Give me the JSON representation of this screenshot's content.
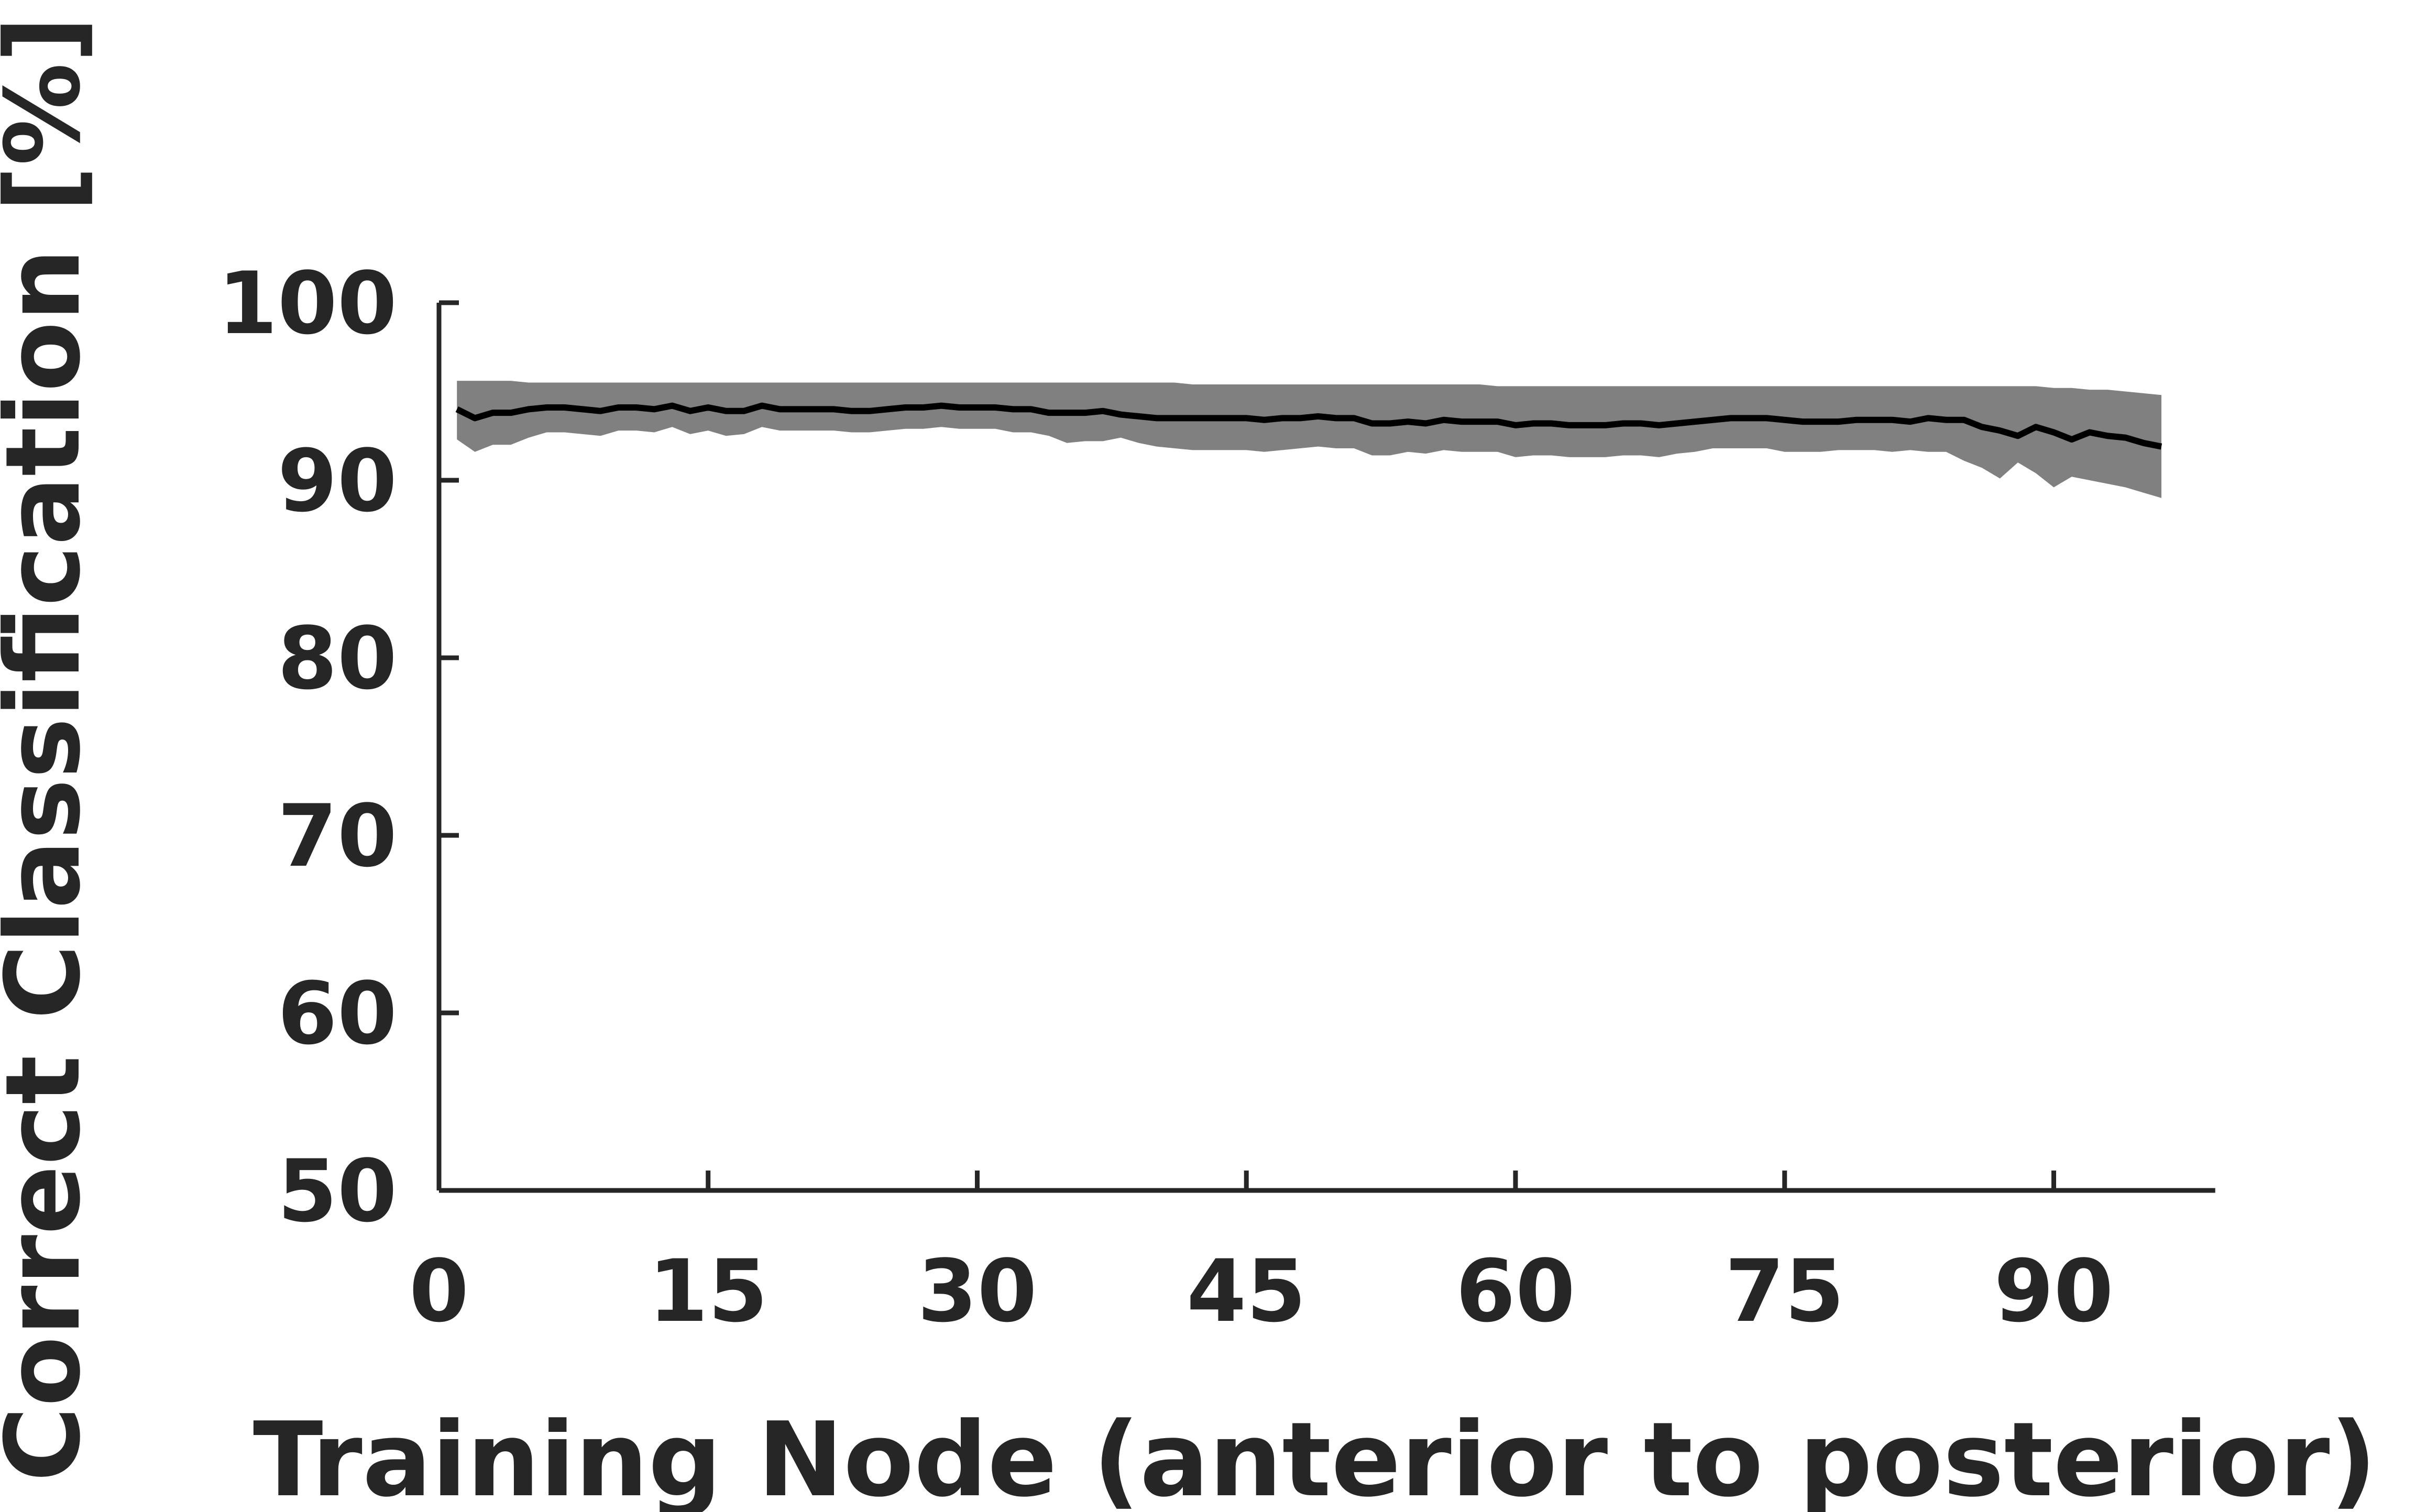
{
  "chart_data": {
    "type": "line",
    "title": "",
    "xlabel": "Training Node (anterior to posterior)",
    "ylabel": "Correct Classification [%]",
    "xlim": [
      0,
      99
    ],
    "ylim": [
      50,
      100
    ],
    "x_ticks": [
      0,
      15,
      30,
      45,
      60,
      75,
      90
    ],
    "y_ticks": [
      50,
      60,
      70,
      80,
      90,
      100
    ],
    "grid": false,
    "legend": "none",
    "colors": {
      "line": "#000000",
      "band": "#808080",
      "axis": "#262626"
    },
    "series": [
      {
        "x": [
          1,
          2,
          3,
          4,
          5,
          6,
          7,
          8,
          9,
          10,
          11,
          12,
          13,
          14,
          15,
          16,
          17,
          18,
          19,
          20,
          21,
          22,
          23,
          24,
          25,
          26,
          27,
          28,
          29,
          30,
          31,
          32,
          33,
          34,
          35,
          36,
          37,
          38,
          39,
          40,
          41,
          42,
          43,
          44,
          45,
          46,
          47,
          48,
          49,
          50,
          51,
          52,
          53,
          54,
          55,
          56,
          57,
          58,
          59,
          60,
          61,
          62,
          63,
          64,
          65,
          66,
          67,
          68,
          69,
          70,
          71,
          72,
          73,
          74,
          75,
          76,
          77,
          78,
          79,
          80,
          81,
          82,
          83,
          84,
          85,
          86,
          87,
          88,
          89,
          90,
          91,
          92,
          93,
          94,
          95,
          96
        ],
        "mean": [
          94,
          93.5,
          93.8,
          93.8,
          94,
          94.1,
          94.1,
          94,
          93.9,
          94.1,
          94.1,
          94,
          94.2,
          93.9,
          94.1,
          93.9,
          93.9,
          94.2,
          94,
          94,
          94,
          94,
          93.9,
          93.9,
          94,
          94.1,
          94.1,
          94.2,
          94.1,
          94.1,
          94.1,
          94,
          94,
          93.8,
          93.8,
          93.8,
          93.9,
          93.7,
          93.6,
          93.5,
          93.5,
          93.5,
          93.5,
          93.5,
          93.5,
          93.4,
          93.5,
          93.5,
          93.6,
          93.5,
          93.5,
          93.2,
          93.2,
          93.3,
          93.2,
          93.4,
          93.3,
          93.3,
          93.3,
          93.1,
          93.2,
          93.2,
          93.1,
          93.1,
          93.1,
          93.2,
          93.2,
          93.1,
          93.2,
          93.3,
          93.4,
          93.5,
          93.5,
          93.5,
          93.4,
          93.3,
          93.3,
          93.3,
          93.4,
          93.4,
          93.4,
          93.3,
          93.5,
          93.4,
          93.4,
          93,
          92.8,
          92.5,
          93,
          92.7,
          92.3,
          92.7,
          92.5,
          92.4,
          92.1,
          91.9
        ],
        "upper": [
          95.6,
          95.6,
          95.6,
          95.6,
          95.5,
          95.5,
          95.5,
          95.5,
          95.5,
          95.5,
          95.5,
          95.5,
          95.5,
          95.5,
          95.5,
          95.5,
          95.5,
          95.5,
          95.5,
          95.5,
          95.5,
          95.5,
          95.5,
          95.5,
          95.5,
          95.5,
          95.5,
          95.5,
          95.5,
          95.5,
          95.5,
          95.5,
          95.5,
          95.5,
          95.5,
          95.5,
          95.5,
          95.5,
          95.5,
          95.5,
          95.5,
          95.4,
          95.4,
          95.4,
          95.4,
          95.4,
          95.4,
          95.4,
          95.4,
          95.4,
          95.4,
          95.4,
          95.4,
          95.4,
          95.4,
          95.4,
          95.4,
          95.4,
          95.3,
          95.3,
          95.3,
          95.3,
          95.3,
          95.3,
          95.3,
          95.3,
          95.3,
          95.3,
          95.3,
          95.3,
          95.3,
          95.3,
          95.3,
          95.3,
          95.3,
          95.3,
          95.3,
          95.3,
          95.3,
          95.3,
          95.3,
          95.3,
          95.3,
          95.3,
          95.3,
          95.3,
          95.3,
          95.3,
          95.3,
          95.2,
          95.2,
          95.1,
          95.1,
          95,
          94.9,
          94.8
        ],
        "lower": [
          92.3,
          91.6,
          92,
          92,
          92.4,
          92.7,
          92.7,
          92.6,
          92.5,
          92.8,
          92.8,
          92.7,
          93,
          92.6,
          92.8,
          92.5,
          92.6,
          93,
          92.8,
          92.8,
          92.8,
          92.8,
          92.7,
          92.7,
          92.8,
          92.9,
          92.9,
          93,
          92.9,
          92.9,
          92.9,
          92.7,
          92.7,
          92.5,
          92.1,
          92.2,
          92.2,
          92.4,
          92.1,
          91.9,
          91.8,
          91.7,
          91.7,
          91.7,
          91.7,
          91.6,
          91.7,
          91.8,
          91.9,
          91.8,
          91.8,
          91.4,
          91.4,
          91.6,
          91.5,
          91.7,
          91.6,
          91.6,
          91.6,
          91.3,
          91.4,
          91.4,
          91.3,
          91.3,
          91.3,
          91.4,
          91.4,
          91.3,
          91.5,
          91.6,
          91.8,
          91.8,
          91.8,
          91.8,
          91.6,
          91.6,
          91.6,
          91.7,
          91.7,
          91.7,
          91.6,
          91.7,
          91.6,
          91.6,
          91.1,
          90.7,
          90.1,
          91,
          90.4,
          89.6,
          90.2,
          90,
          89.8,
          89.6,
          89.3,
          89
        ]
      }
    ]
  }
}
